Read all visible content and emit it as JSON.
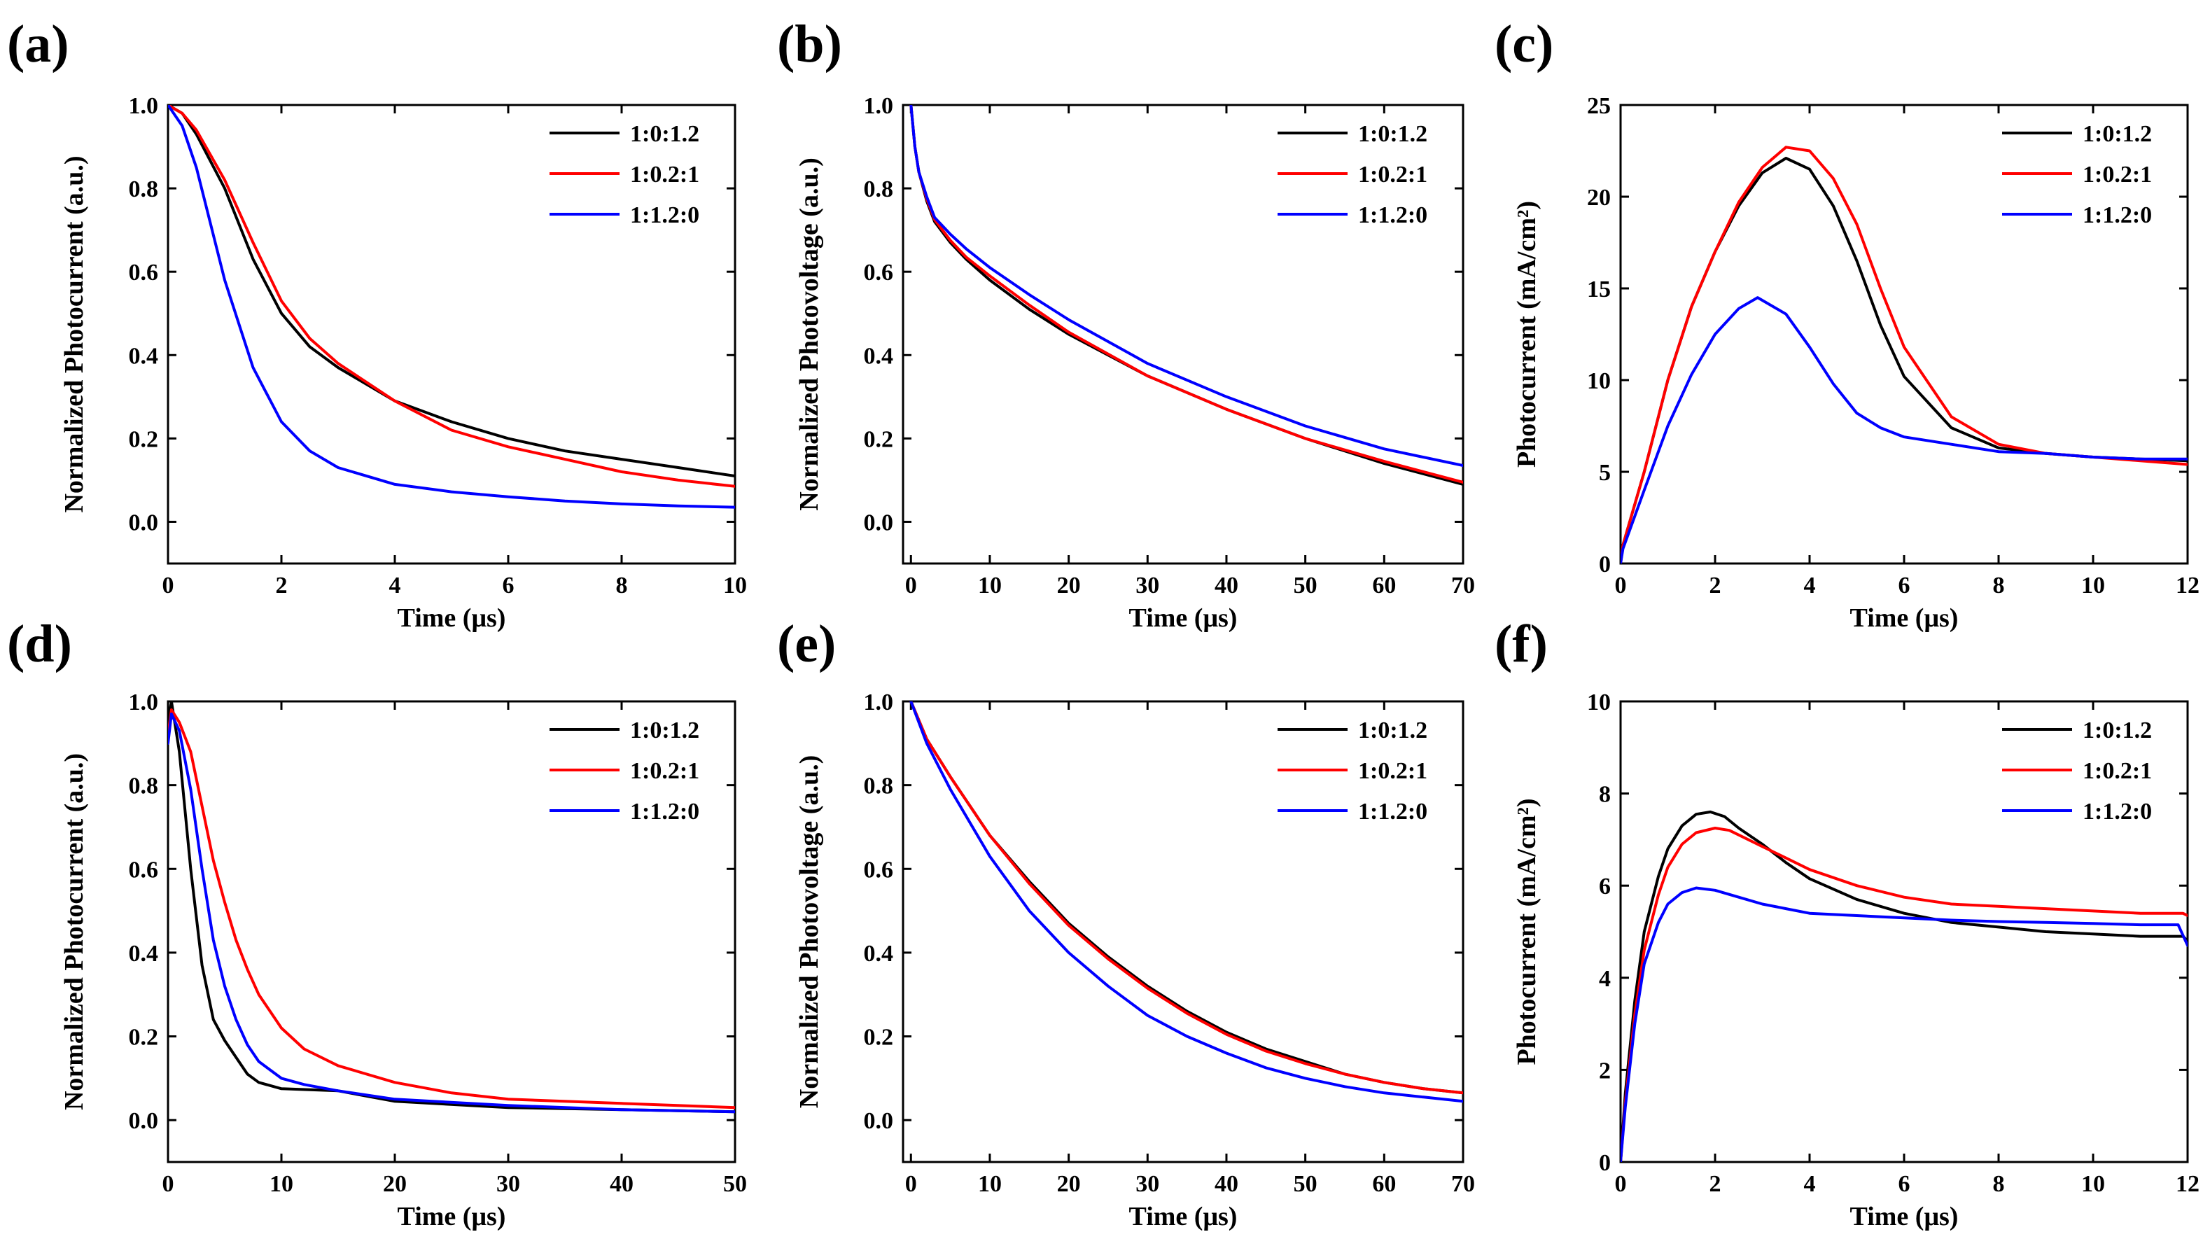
{
  "figure": {
    "panels": [
      "(a)",
      "(b)",
      "(c)",
      "(d)",
      "(e)",
      "(f)"
    ]
  },
  "colors": {
    "black": "#000000",
    "red": "#ff0000",
    "blue": "#0000ff"
  },
  "chart_data": [
    {
      "id": "a",
      "type": "line",
      "panel_label": "(a)",
      "xlabel": "Time (μs)",
      "ylabel": "Normalized Photocurrent (a.u.)",
      "xlim": [
        0,
        10
      ],
      "ylim": [
        -0.1,
        1.0
      ],
      "xticks": [
        0,
        2,
        4,
        6,
        8,
        10
      ],
      "yticks": [
        0.0,
        0.2,
        0.4,
        0.6,
        0.8,
        1.0
      ],
      "ytick_decimals": 1,
      "legend": "top-right",
      "series": [
        {
          "name": "1:0:1.2",
          "color": "#000000",
          "x": [
            0,
            0.25,
            0.5,
            1,
            1.5,
            2,
            2.5,
            3,
            4,
            5,
            6,
            7,
            8,
            9,
            10
          ],
          "y": [
            1,
            0.98,
            0.93,
            0.8,
            0.63,
            0.5,
            0.42,
            0.37,
            0.29,
            0.24,
            0.2,
            0.17,
            0.15,
            0.13,
            0.11
          ]
        },
        {
          "name": "1:0.2:1",
          "color": "#ff0000",
          "x": [
            0,
            0.25,
            0.5,
            1,
            1.5,
            2,
            2.5,
            3,
            4,
            5,
            6,
            7,
            8,
            9,
            10
          ],
          "y": [
            1,
            0.98,
            0.94,
            0.82,
            0.67,
            0.53,
            0.44,
            0.38,
            0.29,
            0.22,
            0.18,
            0.15,
            0.12,
            0.1,
            0.085
          ]
        },
        {
          "name": "1:1.2:0",
          "color": "#0000ff",
          "x": [
            0,
            0.25,
            0.5,
            1,
            1.5,
            2,
            2.5,
            3,
            4,
            5,
            6,
            7,
            8,
            9,
            10
          ],
          "y": [
            1,
            0.95,
            0.85,
            0.58,
            0.37,
            0.24,
            0.17,
            0.13,
            0.09,
            0.072,
            0.06,
            0.05,
            0.043,
            0.038,
            0.035
          ]
        }
      ]
    },
    {
      "id": "b",
      "type": "line",
      "panel_label": "(b)",
      "xlabel": "Time (μs)",
      "ylabel": "Normalized Photovoltage (a.u.)",
      "xlim": [
        -1,
        70
      ],
      "ylim": [
        -0.1,
        1.0
      ],
      "xticks": [
        0,
        10,
        20,
        30,
        40,
        50,
        60,
        70
      ],
      "yticks": [
        0.0,
        0.2,
        0.4,
        0.6,
        0.8,
        1.0
      ],
      "ytick_decimals": 1,
      "legend": "top-right",
      "series": [
        {
          "name": "1:0:1.2",
          "color": "#000000",
          "x": [
            0,
            0.5,
            1,
            2,
            3,
            5,
            7,
            10,
            15,
            20,
            30,
            40,
            50,
            60,
            70
          ],
          "y": [
            1,
            0.9,
            0.84,
            0.77,
            0.72,
            0.67,
            0.63,
            0.58,
            0.51,
            0.45,
            0.35,
            0.27,
            0.2,
            0.14,
            0.09
          ]
        },
        {
          "name": "1:0.2:1",
          "color": "#ff0000",
          "x": [
            0,
            0.5,
            1,
            2,
            3,
            5,
            7,
            10,
            15,
            20,
            30,
            40,
            50,
            60,
            70
          ],
          "y": [
            1,
            0.9,
            0.84,
            0.775,
            0.725,
            0.675,
            0.635,
            0.59,
            0.52,
            0.455,
            0.35,
            0.27,
            0.2,
            0.145,
            0.095
          ]
        },
        {
          "name": "1:1.2:0",
          "color": "#0000ff",
          "x": [
            0,
            0.5,
            1,
            2,
            3,
            5,
            7,
            10,
            15,
            20,
            30,
            40,
            50,
            60,
            70
          ],
          "y": [
            1,
            0.9,
            0.84,
            0.78,
            0.73,
            0.69,
            0.655,
            0.61,
            0.545,
            0.485,
            0.38,
            0.3,
            0.23,
            0.175,
            0.135
          ]
        }
      ]
    },
    {
      "id": "c",
      "type": "line",
      "panel_label": "(c)",
      "xlabel": "Time (μs)",
      "ylabel": "Photocurrent (mA/cm²)",
      "xlim": [
        0,
        12
      ],
      "ylim": [
        0,
        25
      ],
      "xticks": [
        0,
        2,
        4,
        6,
        8,
        10,
        12
      ],
      "yticks": [
        0,
        5,
        10,
        15,
        20,
        25
      ],
      "ytick_decimals": 0,
      "legend": "top-right",
      "series": [
        {
          "name": "1:0:1.2",
          "color": "#000000",
          "x": [
            0,
            0.05,
            0.5,
            1,
            1.5,
            2,
            2.5,
            3,
            3.5,
            4,
            4.5,
            5,
            5.5,
            6,
            7,
            8,
            9,
            10,
            11,
            12
          ],
          "y": [
            0,
            1,
            5,
            10,
            14,
            17,
            19.5,
            21.3,
            22.1,
            21.5,
            19.5,
            16.5,
            13,
            10.2,
            7.4,
            6.3,
            6,
            5.8,
            5.7,
            5.6
          ]
        },
        {
          "name": "1:0.2:1",
          "color": "#ff0000",
          "x": [
            0,
            0.05,
            0.5,
            1,
            1.5,
            2,
            2.5,
            3,
            3.5,
            4,
            4.5,
            5,
            5.5,
            6,
            7,
            8,
            9,
            10,
            11,
            12
          ],
          "y": [
            0,
            1,
            5,
            10,
            14,
            17,
            19.7,
            21.6,
            22.7,
            22.5,
            21,
            18.5,
            15,
            11.8,
            8,
            6.5,
            6,
            5.8,
            5.6,
            5.4
          ]
        },
        {
          "name": "1:1.2:0",
          "color": "#0000ff",
          "x": [
            0,
            0.05,
            0.5,
            1,
            1.5,
            2,
            2.5,
            2.9,
            3.5,
            4,
            4.5,
            5,
            5.5,
            6,
            7,
            8,
            9,
            10,
            11,
            12
          ],
          "y": [
            0,
            0.8,
            4,
            7.5,
            10.3,
            12.5,
            13.9,
            14.5,
            13.6,
            11.8,
            9.8,
            8.2,
            7.4,
            6.9,
            6.5,
            6.1,
            6,
            5.8,
            5.7,
            5.7
          ]
        }
      ]
    },
    {
      "id": "d",
      "type": "line",
      "panel_label": "(d)",
      "xlabel": "Time (μs)",
      "ylabel": "Normalized Photocurrent (a.u.)",
      "xlim": [
        0,
        50
      ],
      "ylim": [
        -0.1,
        1.0
      ],
      "xticks": [
        0,
        10,
        20,
        30,
        40,
        50
      ],
      "yticks": [
        0.0,
        0.2,
        0.4,
        0.6,
        0.8,
        1.0
      ],
      "ytick_decimals": 1,
      "legend": "top-right",
      "series": [
        {
          "name": "1:0:1.2",
          "color": "#000000",
          "x": [
            0,
            0.3,
            1,
            2,
            3,
            4,
            5,
            6,
            7,
            8,
            10,
            15,
            20,
            30,
            40,
            50
          ],
          "y": [
            0.95,
            1,
            0.88,
            0.6,
            0.37,
            0.24,
            0.19,
            0.15,
            0.11,
            0.09,
            0.075,
            0.07,
            0.045,
            0.03,
            0.025,
            0.02
          ]
        },
        {
          "name": "1:0.2:1",
          "color": "#ff0000",
          "x": [
            0,
            0.3,
            1,
            2,
            3,
            4,
            5,
            6,
            7,
            8,
            10,
            12,
            15,
            20,
            25,
            30,
            40,
            50
          ],
          "y": [
            0.92,
            0.98,
            0.95,
            0.88,
            0.75,
            0.62,
            0.52,
            0.43,
            0.36,
            0.3,
            0.22,
            0.17,
            0.13,
            0.09,
            0.065,
            0.05,
            0.04,
            0.03
          ]
        },
        {
          "name": "1:1.2:0",
          "color": "#0000ff",
          "x": [
            0,
            0.3,
            1,
            2,
            3,
            4,
            5,
            6,
            7,
            8,
            10,
            12,
            15,
            20,
            30,
            40,
            50
          ],
          "y": [
            0.9,
            0.97,
            0.93,
            0.79,
            0.6,
            0.43,
            0.32,
            0.24,
            0.18,
            0.14,
            0.1,
            0.085,
            0.07,
            0.05,
            0.035,
            0.025,
            0.02
          ]
        }
      ]
    },
    {
      "id": "e",
      "type": "line",
      "panel_label": "(e)",
      "xlabel": "Time (μs)",
      "ylabel": "Normalized Photovoltage (a.u.)",
      "xlim": [
        -1,
        70
      ],
      "ylim": [
        -0.1,
        1.0
      ],
      "xticks": [
        0,
        10,
        20,
        30,
        40,
        50,
        60,
        70
      ],
      "yticks": [
        0.0,
        0.2,
        0.4,
        0.6,
        0.8,
        1.0
      ],
      "ytick_decimals": 1,
      "legend": "top-right",
      "series": [
        {
          "name": "1:0:1.2",
          "color": "#000000",
          "x": [
            0,
            2,
            5,
            10,
            15,
            20,
            25,
            30,
            35,
            40,
            45,
            50,
            55,
            60,
            65,
            70
          ],
          "y": [
            1,
            0.91,
            0.82,
            0.68,
            0.57,
            0.47,
            0.39,
            0.32,
            0.26,
            0.21,
            0.17,
            0.14,
            0.11,
            0.09,
            0.075,
            0.065
          ]
        },
        {
          "name": "1:0.2:1",
          "color": "#ff0000",
          "x": [
            0,
            2,
            5,
            10,
            15,
            20,
            25,
            30,
            35,
            40,
            45,
            50,
            55,
            60,
            65,
            70
          ],
          "y": [
            1,
            0.91,
            0.82,
            0.68,
            0.565,
            0.465,
            0.385,
            0.315,
            0.255,
            0.205,
            0.165,
            0.135,
            0.11,
            0.09,
            0.075,
            0.065
          ]
        },
        {
          "name": "1:1.2:0",
          "color": "#0000ff",
          "x": [
            0,
            2,
            5,
            10,
            15,
            20,
            25,
            30,
            35,
            40,
            45,
            50,
            55,
            60,
            65,
            70
          ],
          "y": [
            1,
            0.9,
            0.79,
            0.63,
            0.5,
            0.4,
            0.32,
            0.25,
            0.2,
            0.16,
            0.125,
            0.1,
            0.08,
            0.065,
            0.055,
            0.045
          ]
        }
      ]
    },
    {
      "id": "f",
      "type": "line",
      "panel_label": "(f)",
      "xlabel": "Time (μs)",
      "ylabel": "Photocurrent (mA/cm²)",
      "xlim": [
        0,
        12
      ],
      "ylim": [
        0,
        10
      ],
      "xticks": [
        0,
        2,
        4,
        6,
        8,
        10,
        12
      ],
      "yticks": [
        0,
        2,
        4,
        6,
        8,
        10
      ],
      "ytick_decimals": 0,
      "legend": "top-right",
      "series": [
        {
          "name": "1:0:1.2",
          "color": "#000000",
          "x": [
            0,
            0.1,
            0.3,
            0.5,
            0.8,
            1,
            1.3,
            1.6,
            1.9,
            2.2,
            2.5,
            3,
            3.5,
            4,
            5,
            6,
            7,
            8,
            9,
            10,
            11,
            11.9,
            12
          ],
          "y": [
            0,
            1.5,
            3.5,
            5,
            6.2,
            6.8,
            7.3,
            7.55,
            7.6,
            7.5,
            7.25,
            6.9,
            6.5,
            6.15,
            5.7,
            5.4,
            5.2,
            5.1,
            5,
            4.95,
            4.9,
            4.9,
            4.8
          ]
        },
        {
          "name": "1:0.2:1",
          "color": "#ff0000",
          "x": [
            0,
            0.1,
            0.3,
            0.5,
            0.8,
            1,
            1.3,
            1.6,
            2,
            2.3,
            2.6,
            3,
            3.5,
            4,
            5,
            6,
            7,
            8,
            9,
            10,
            11,
            11.9,
            12
          ],
          "y": [
            0,
            1.3,
            3.2,
            4.6,
            5.8,
            6.4,
            6.9,
            7.15,
            7.25,
            7.2,
            7.05,
            6.85,
            6.6,
            6.35,
            6,
            5.75,
            5.6,
            5.55,
            5.5,
            5.45,
            5.4,
            5.4,
            5.35
          ]
        },
        {
          "name": "1:1.2:0",
          "color": "#0000ff",
          "x": [
            0,
            0.1,
            0.3,
            0.5,
            0.8,
            1,
            1.3,
            1.6,
            2,
            2.5,
            3,
            3.5,
            4,
            5,
            6,
            7,
            8,
            9,
            10,
            11,
            11.8,
            12
          ],
          "y": [
            0,
            1.2,
            3,
            4.3,
            5.2,
            5.6,
            5.85,
            5.95,
            5.9,
            5.75,
            5.6,
            5.5,
            5.4,
            5.35,
            5.3,
            5.25,
            5.22,
            5.2,
            5.18,
            5.15,
            5.15,
            4.7
          ]
        }
      ]
    }
  ]
}
